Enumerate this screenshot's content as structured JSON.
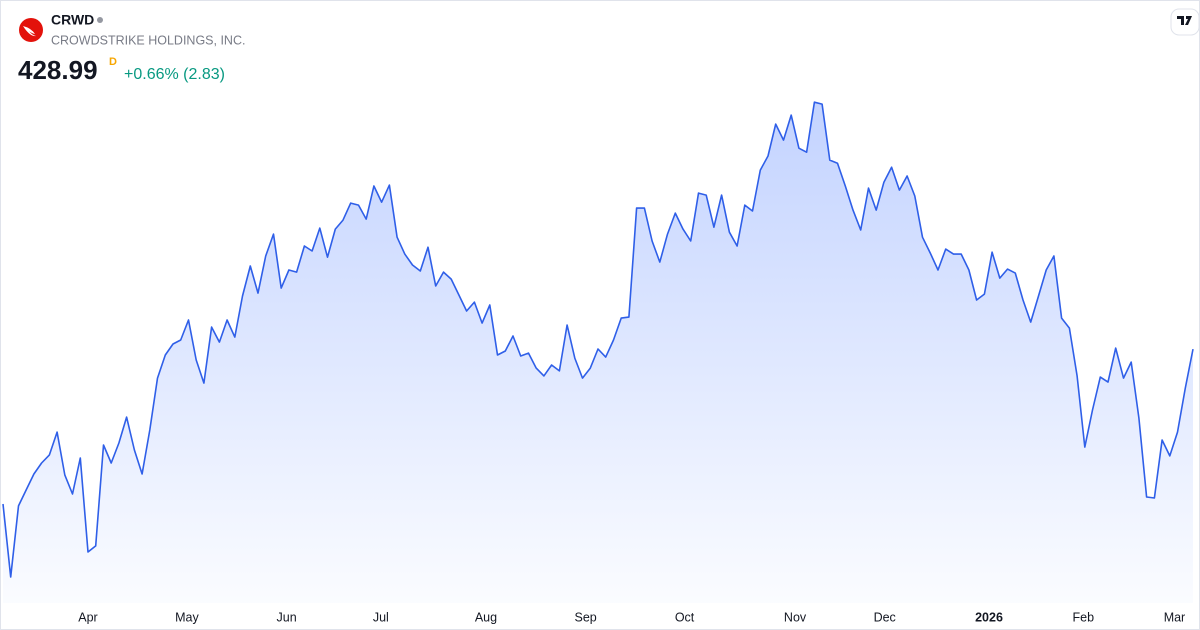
{
  "header": {
    "symbol": "CRWD",
    "company": "CROWDSTRIKE HOLDINGS, INC.",
    "price": "428.99",
    "interval": "D",
    "change": "+0.66% (2.83)"
  },
  "chart_data": {
    "type": "line",
    "color": "#2f5fe8",
    "grid": false,
    "values": [
      348.4,
      310.4,
      347.4,
      355.7,
      364.0,
      369.7,
      373.9,
      385.8,
      363.5,
      353.6,
      372.3,
      323.4,
      326.6,
      379.1,
      369.7,
      380.1,
      393.6,
      376.5,
      364.0,
      386.9,
      413.9,
      425.9,
      431.6,
      433.7,
      444.1,
      423.3,
      411.3,
      440.4,
      432.6,
      444.1,
      435.2,
      456.6,
      472.2,
      458.1,
      477.4,
      488.8,
      460.7,
      470.1,
      469.0,
      482.6,
      480.0,
      491.9,
      476.8,
      491.4,
      496.1,
      504.9,
      503.9,
      496.6,
      513.8,
      505.4,
      514.3,
      487.2,
      478.4,
      472.7,
      469.6,
      482.0,
      461.8,
      469.0,
      465.4,
      457.1,
      448.8,
      453.4,
      442.5,
      451.9,
      425.9,
      428.0,
      435.8,
      425.4,
      426.9,
      419.1,
      415.0,
      420.7,
      417.6,
      441.5,
      424.3,
      413.9,
      419.1,
      429.0,
      424.8,
      433.7,
      445.1,
      445.6,
      502.3,
      502.3,
      485.2,
      474.2,
      488.8,
      499.7,
      491.4,
      485.2,
      510.1,
      509.1,
      492.4,
      509.1,
      489.8,
      482.6,
      503.9,
      500.8,
      522.1,
      529.4,
      546.0,
      537.7,
      550.7,
      533.5,
      531.4,
      557.4,
      556.4,
      527.3,
      525.7,
      513.8,
      501.3,
      490.9,
      512.7,
      501.3,
      515.8,
      523.6,
      511.7,
      519.0,
      508.6,
      487.2,
      478.9,
      470.1,
      481.0,
      478.4,
      478.4,
      470.1,
      454.5,
      457.6,
      479.4,
      465.9,
      470.6,
      468.5,
      454.5,
      443.0,
      456.6,
      470.1,
      477.4,
      445.1,
      439.9,
      415.0,
      378.0,
      397.3,
      414.4,
      411.8,
      429.5,
      413.9,
      422.2,
      393.1,
      352.0,
      351.5,
      381.7,
      373.4,
      385.8,
      408.7,
      428.99
    ],
    "xlim": [
      0,
      154
    ],
    "xticks": [
      {
        "value": 11.0,
        "label": "Apr"
      },
      {
        "value": 23.8,
        "label": "May"
      },
      {
        "value": 36.7,
        "label": "Jun"
      },
      {
        "value": 48.9,
        "label": "Jul"
      },
      {
        "value": 62.5,
        "label": "Aug"
      },
      {
        "value": 75.4,
        "label": "Sep"
      },
      {
        "value": 88.2,
        "label": "Oct"
      },
      {
        "value": 102.5,
        "label": "Nov"
      },
      {
        "value": 114.1,
        "label": "Dec"
      },
      {
        "value": 127.6,
        "label": "2026"
      },
      {
        "value": 139.8,
        "label": "Feb"
      },
      {
        "value": 151.6,
        "label": "Mar"
      }
    ],
    "ylim": [
      300,
      570
    ]
  }
}
